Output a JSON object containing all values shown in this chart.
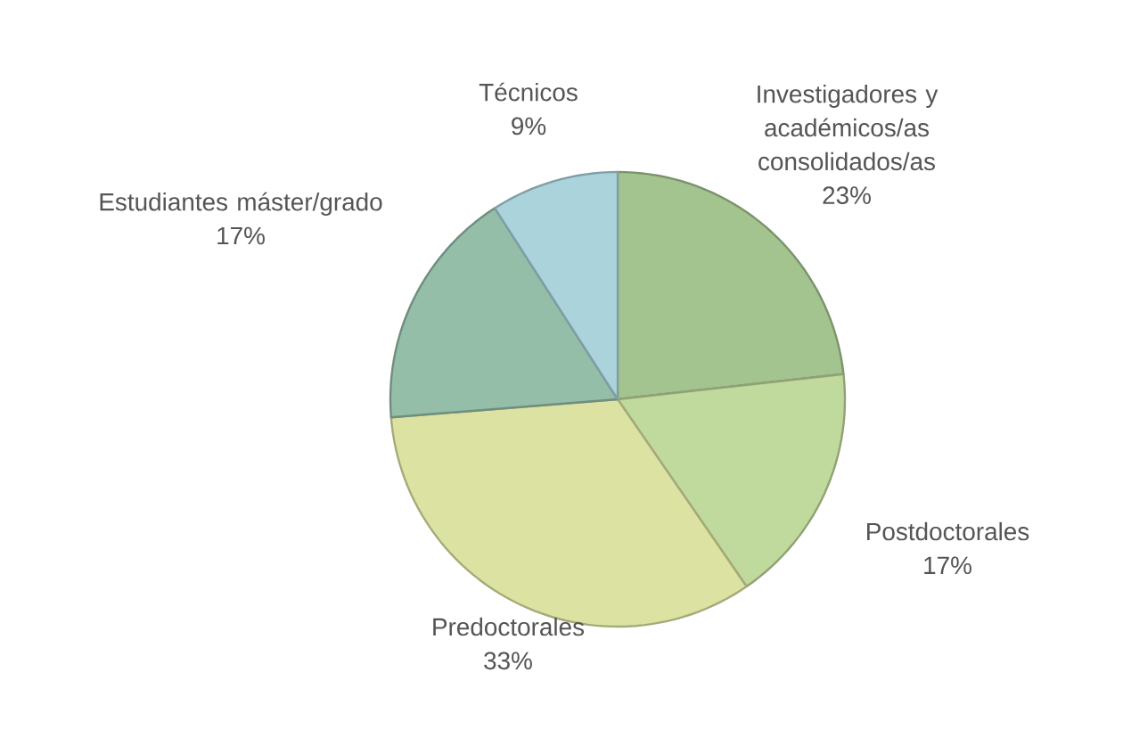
{
  "chart_data": {
    "type": "pie",
    "categories": [
      "Investigadores y académicos/as consolidados/as",
      "Postdoctorales",
      "Predoctorales",
      "Estudiantes máster/grado",
      "Técnicos"
    ],
    "values": [
      23,
      17,
      33,
      17,
      9
    ],
    "value_labels": [
      "23%",
      "17%",
      "33%",
      "17%",
      "9%"
    ],
    "colors": [
      "#a3c48f",
      "#c0d99c",
      "#dce3a2",
      "#95bea8",
      "#abd3dc"
    ]
  }
}
